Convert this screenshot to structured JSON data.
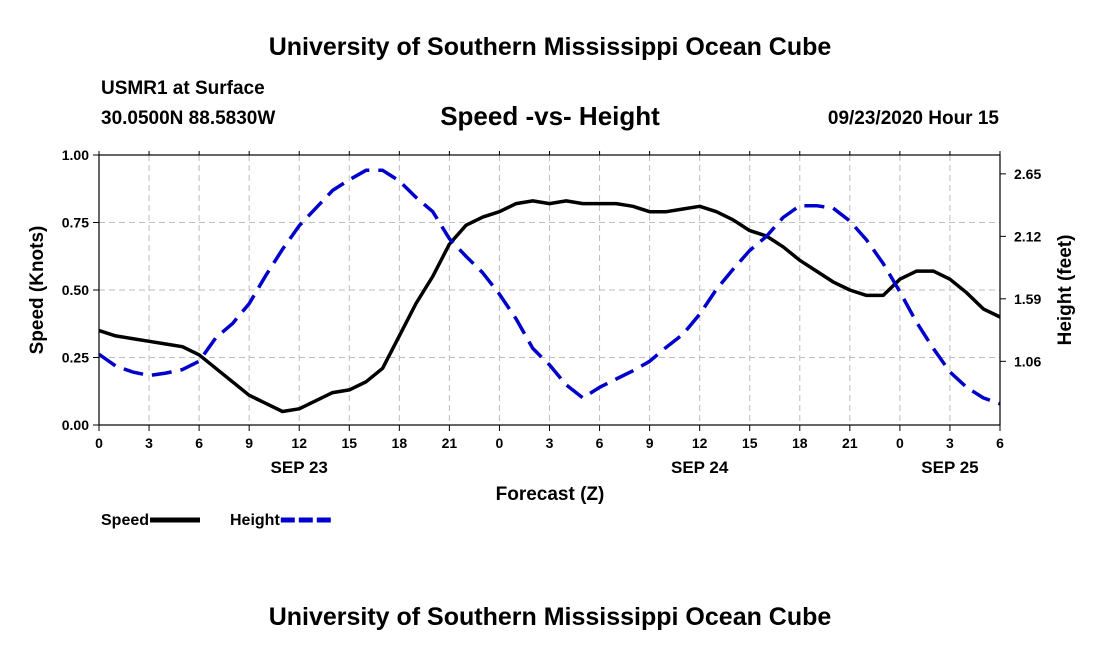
{
  "header": {
    "title_top": "University of Southern Mississippi Ocean Cube",
    "station": "USMR1 at Surface",
    "coords": "30.0500N 88.5830W",
    "datetime": "09/23/2020 Hour 15",
    "title_bottom": "University of Southern Mississippi Ocean Cube"
  },
  "chart_data": {
    "type": "line",
    "title": "Speed -vs- Height",
    "xlabel": "Forecast (Z)",
    "ylabel_left": "Speed (Knots)",
    "ylabel_right": "Height (feet)",
    "x_range_hours": [
      0,
      54
    ],
    "x_tick_hours": [
      0,
      3,
      6,
      9,
      12,
      15,
      18,
      21,
      24,
      27,
      30,
      33,
      36,
      39,
      42,
      45,
      48,
      51,
      54
    ],
    "x_tick_labels": [
      "0",
      "3",
      "6",
      "9",
      "12",
      "15",
      "18",
      "21",
      "0",
      "3",
      "6",
      "9",
      "12",
      "15",
      "18",
      "21",
      "0",
      "3",
      "6"
    ],
    "day_labels": [
      {
        "hour": 12,
        "label": "SEP 23"
      },
      {
        "hour": 36,
        "label": "SEP 24"
      },
      {
        "hour": 51,
        "label": "SEP 25"
      }
    ],
    "ylim_left": [
      0,
      1
    ],
    "y_ticks_left": [
      "0.00",
      "0.25",
      "0.50",
      "0.75",
      "1.00"
    ],
    "ylim_right": [
      0.52,
      2.81
    ],
    "y_ticks_right": [
      {
        "value": 1.06,
        "label": "1.06"
      },
      {
        "value": 1.59,
        "label": "1.59"
      },
      {
        "value": 2.12,
        "label": "2.12"
      },
      {
        "value": 2.65,
        "label": "2.65"
      }
    ],
    "grid": true,
    "series": [
      {
        "name": "Speed",
        "axis": "left",
        "color": "#000000",
        "style": "solid",
        "x": [
          0,
          1,
          2,
          3,
          4,
          5,
          6,
          7,
          8,
          9,
          10,
          11,
          12,
          13,
          14,
          15,
          16,
          17,
          18,
          19,
          20,
          21,
          22,
          23,
          24,
          25,
          26,
          27,
          28,
          29,
          30,
          31,
          32,
          33,
          34,
          35,
          36,
          37,
          38,
          39,
          40,
          41,
          42,
          43,
          44,
          45,
          46,
          47,
          48,
          49,
          50,
          51,
          52,
          53,
          54
        ],
        "values": [
          0.35,
          0.33,
          0.32,
          0.31,
          0.3,
          0.29,
          0.26,
          0.21,
          0.16,
          0.11,
          0.08,
          0.05,
          0.06,
          0.09,
          0.12,
          0.13,
          0.16,
          0.21,
          0.33,
          0.45,
          0.55,
          0.67,
          0.74,
          0.77,
          0.79,
          0.82,
          0.83,
          0.82,
          0.83,
          0.82,
          0.82,
          0.82,
          0.81,
          0.79,
          0.79,
          0.8,
          0.81,
          0.79,
          0.76,
          0.72,
          0.7,
          0.66,
          0.61,
          0.57,
          0.53,
          0.5,
          0.48,
          0.48,
          0.54,
          0.57,
          0.57,
          0.54,
          0.49,
          0.43,
          0.4
        ]
      },
      {
        "name": "Height",
        "axis": "right",
        "color": "#0000cc",
        "style": "dashed",
        "x": [
          0,
          1,
          2,
          3,
          4,
          5,
          6,
          7,
          8,
          9,
          10,
          11,
          12,
          13,
          14,
          15,
          16,
          17,
          18,
          19,
          20,
          21,
          22,
          23,
          24,
          25,
          26,
          27,
          28,
          29,
          30,
          31,
          32,
          33,
          34,
          35,
          36,
          37,
          38,
          39,
          40,
          41,
          42,
          43,
          44,
          45,
          46,
          47,
          48,
          49,
          50,
          51,
          52,
          53,
          54
        ],
        "values": [
          1.12,
          1.02,
          0.97,
          0.94,
          0.96,
          0.99,
          1.06,
          1.26,
          1.38,
          1.55,
          1.79,
          2.01,
          2.21,
          2.36,
          2.51,
          2.6,
          2.68,
          2.68,
          2.59,
          2.45,
          2.33,
          2.1,
          1.95,
          1.81,
          1.63,
          1.42,
          1.17,
          1.03,
          0.86,
          0.75,
          0.84,
          0.91,
          0.98,
          1.06,
          1.18,
          1.29,
          1.46,
          1.67,
          1.84,
          2.0,
          2.12,
          2.28,
          2.38,
          2.38,
          2.36,
          2.25,
          2.09,
          1.89,
          1.65,
          1.39,
          1.17,
          0.97,
          0.84,
          0.75,
          0.7
        ]
      }
    ],
    "legend": [
      {
        "label": "Speed",
        "color": "#000000",
        "style": "solid"
      },
      {
        "label": "Height",
        "color": "#0000cc",
        "style": "dashed"
      }
    ]
  }
}
